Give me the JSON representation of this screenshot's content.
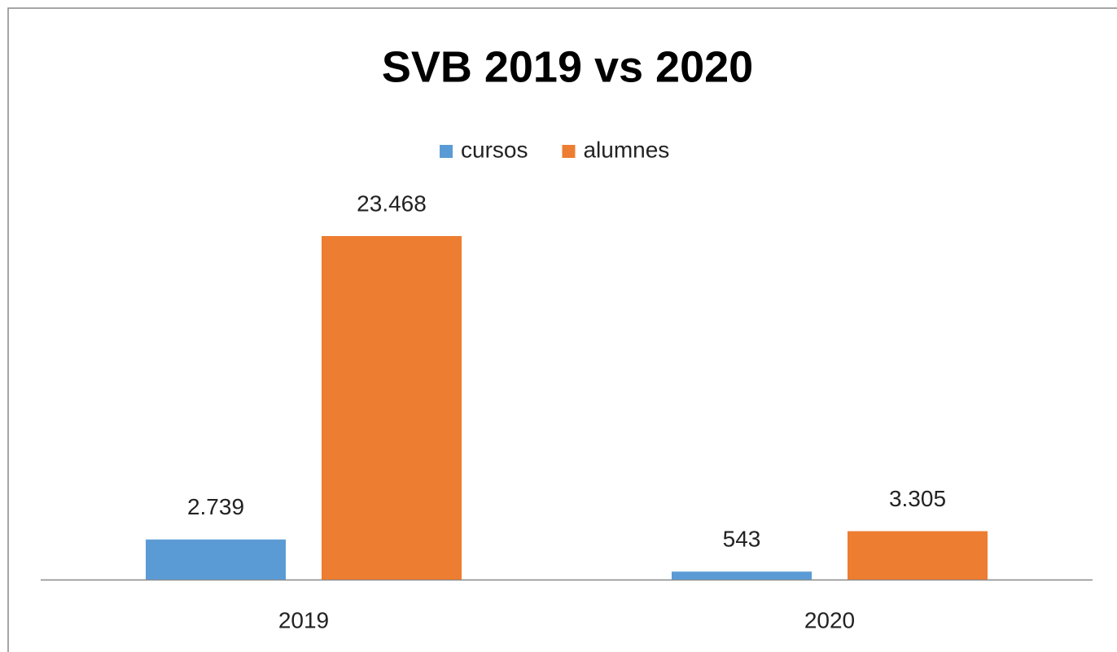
{
  "chart_data": {
    "type": "bar",
    "title": "SVB 2019 vs 2020",
    "categories": [
      "2019",
      "2020"
    ],
    "series": [
      {
        "name": "cursos",
        "color": "#5b9bd5",
        "values": [
          2739,
          543
        ],
        "value_labels": [
          "2.739",
          "543"
        ]
      },
      {
        "name": "alumnes",
        "color": "#ed7d31",
        "values": [
          23468,
          3305
        ],
        "value_labels": [
          "23.468",
          "3.305"
        ]
      }
    ],
    "legend": "top"
  }
}
